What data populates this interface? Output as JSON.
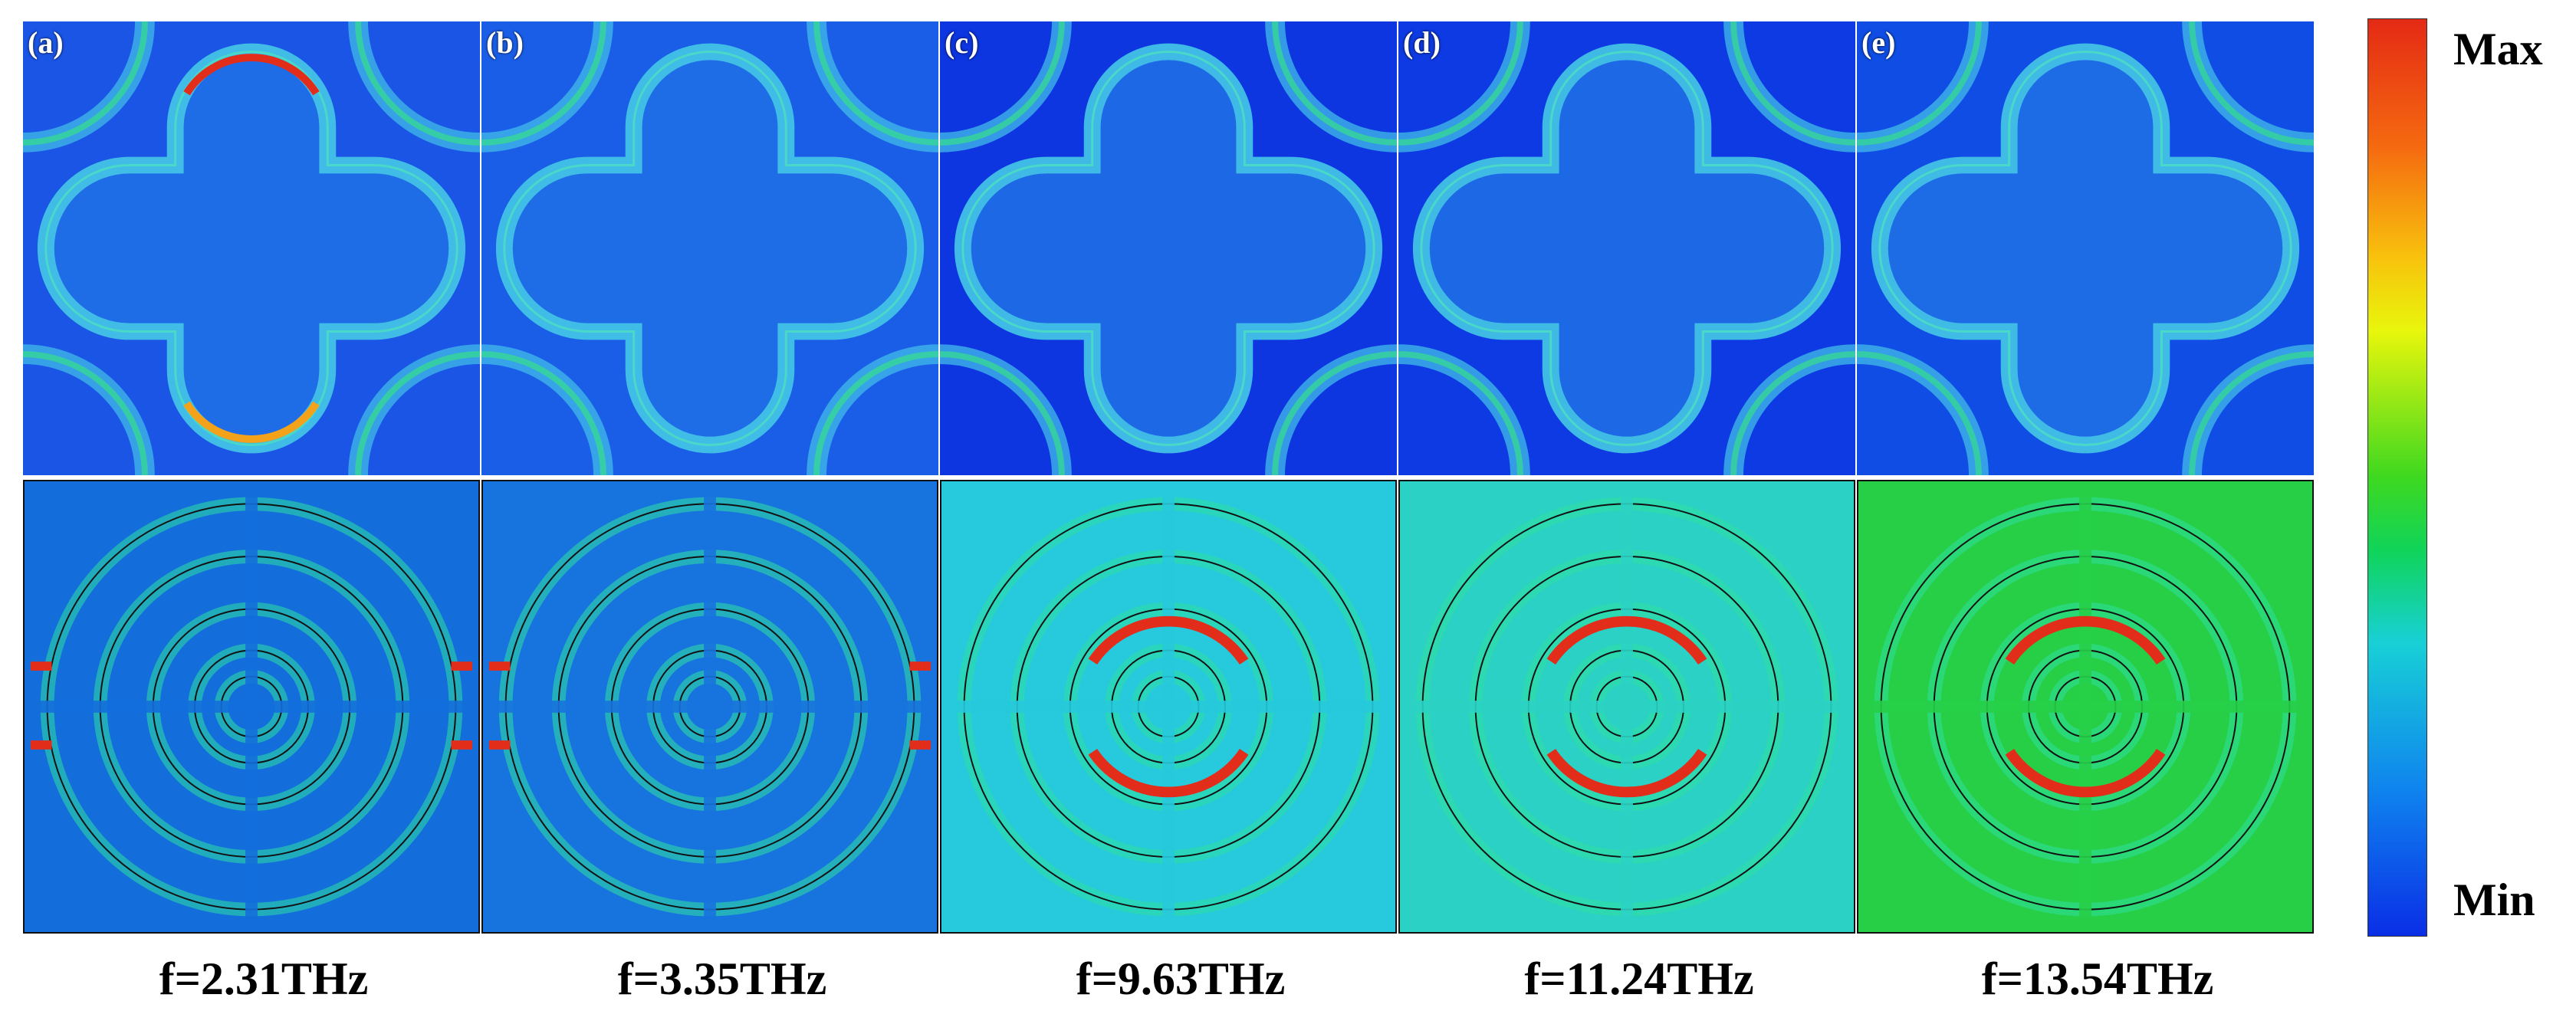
{
  "panels": [
    {
      "letter": "(a)",
      "top_bg": "#1a55e6",
      "bottom_bg": "#136edb",
      "hot": "#e32d1b"
    },
    {
      "letter": "(b)",
      "top_bg": "#1a5ee8",
      "bottom_bg": "#1773de",
      "hot": "#e32d1b"
    },
    {
      "letter": "(c)",
      "top_bg": "#0d35e0",
      "bottom_bg": "#27c9dc",
      "hot": "#e32d1b"
    },
    {
      "letter": "(d)",
      "top_bg": "#0d3ae2",
      "bottom_bg": "#2bd1c4",
      "hot": "#e32d1b"
    },
    {
      "letter": "(e)",
      "top_bg": "#0f4de4",
      "bottom_bg": "#27cf47",
      "hot": "#e32d1b"
    }
  ],
  "frequencies": [
    "f=2.31THz",
    "f=3.35THz",
    "f=9.63THz",
    "f=11.24THz",
    "f=13.54THz"
  ],
  "colorbar": {
    "max_label": "Max",
    "min_label": "Min"
  }
}
